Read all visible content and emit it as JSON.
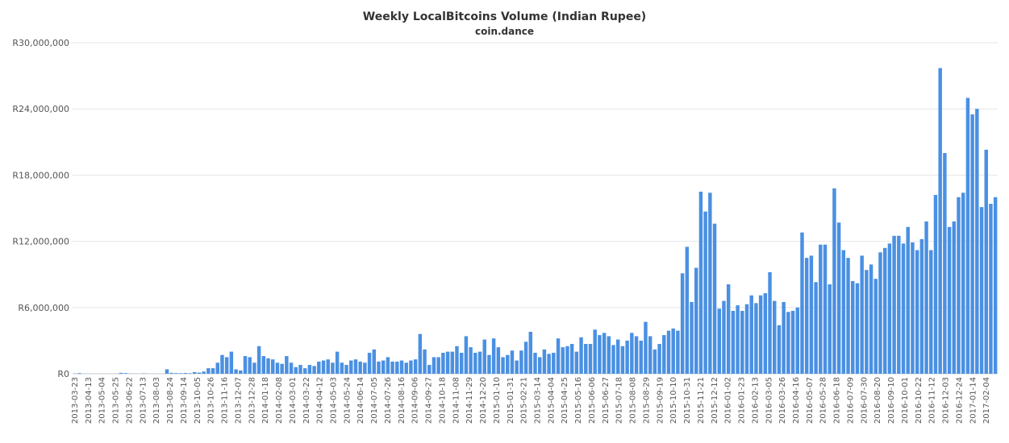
{
  "chart_data": {
    "type": "bar",
    "title": "Weekly LocalBitcoins Volume (Indian Rupee)",
    "subtitle": "coin.dance",
    "xlabel": "",
    "ylabel": "",
    "ylim": [
      0,
      30000000
    ],
    "yticks": [
      0,
      6000000,
      12000000,
      18000000,
      24000000,
      30000000
    ],
    "ytick_labels": [
      "R0",
      "R6,000,000",
      "R12,000,000",
      "R18,000,000",
      "R24,000,000",
      "R30,000,000"
    ],
    "grid": true,
    "bar_color": "#4a90e2",
    "x_tick_labels": [
      "2013-03-23",
      "2013-04-13",
      "2013-05-04",
      "2013-05-25",
      "2013-06-22",
      "2013-07-13",
      "2013-08-03",
      "2013-08-24",
      "2013-09-14",
      "2013-10-05",
      "2013-10-26",
      "2013-11-16",
      "2013-12-07",
      "2013-12-28",
      "2014-01-18",
      "2014-02-08",
      "2014-03-01",
      "2014-03-22",
      "2014-04-12",
      "2014-05-03",
      "2014-05-24",
      "2014-06-14",
      "2014-07-05",
      "2014-07-26",
      "2014-08-16",
      "2014-09-06",
      "2014-09-27",
      "2014-10-18",
      "2014-11-08",
      "2014-11-29",
      "2014-12-20",
      "2015-01-10",
      "2015-01-31",
      "2015-02-21",
      "2015-03-14",
      "2015-04-04",
      "2015-04-25",
      "2015-05-16",
      "2015-06-06",
      "2015-06-27",
      "2015-07-18",
      "2015-08-08",
      "2015-08-29",
      "2015-09-19",
      "2015-10-10",
      "2015-10-31",
      "2015-11-21",
      "2015-12-12",
      "2016-01-02",
      "2016-01-23",
      "2016-02-13",
      "2016-03-05",
      "2016-03-26",
      "2016-04-16",
      "2016-05-07",
      "2016-05-28",
      "2016-06-18",
      "2016-07-09",
      "2016-07-30",
      "2016-08-20",
      "2016-09-10",
      "2016-10-01",
      "2016-10-22",
      "2016-11-12",
      "2016-12-03",
      "2016-12-24",
      "2017-01-14",
      "2017-02-04"
    ],
    "values": [
      20000,
      60000,
      10000,
      10000,
      5000,
      5000,
      5000,
      5000,
      5000,
      10000,
      80000,
      60000,
      20000,
      10000,
      5000,
      30000,
      10000,
      10000,
      5000,
      5000,
      400000,
      80000,
      60000,
      50000,
      70000,
      50000,
      150000,
      100000,
      200000,
      500000,
      500000,
      1000000,
      1700000,
      1500000,
      2000000,
      400000,
      300000,
      1600000,
      1500000,
      1000000,
      2500000,
      1600000,
      1400000,
      1300000,
      1000000,
      900000,
      1600000,
      1000000,
      600000,
      800000,
      500000,
      800000,
      700000,
      1100000,
      1200000,
      1300000,
      1000000,
      2000000,
      1000000,
      800000,
      1200000,
      1300000,
      1100000,
      1000000,
      1900000,
      2200000,
      1100000,
      1200000,
      1500000,
      1100000,
      1100000,
      1200000,
      1000000,
      1200000,
      1300000,
      3600000,
      2200000,
      800000,
      1500000,
      1500000,
      1900000,
      2000000,
      2000000,
      2500000,
      1900000,
      3400000,
      2400000,
      1900000,
      2000000,
      3100000,
      1700000,
      3200000,
      2400000,
      1500000,
      1700000,
      2100000,
      1200000,
      2100000,
      2900000,
      3800000,
      1900000,
      1500000,
      2200000,
      1800000,
      1900000,
      3200000,
      2400000,
      2500000,
      2700000,
      2000000,
      3300000,
      2700000,
      2700000,
      4000000,
      3500000,
      3700000,
      3400000,
      2600000,
      3100000,
      2500000,
      3000000,
      3700000,
      3400000,
      3000000,
      4700000,
      3400000,
      2200000,
      2700000,
      3500000,
      3900000,
      4100000,
      3900000,
      9100000,
      11500000,
      6500000,
      9600000,
      16500000,
      14700000,
      16400000,
      13600000,
      5900000,
      6600000,
      8100000,
      5700000,
      6200000,
      5700000,
      6300000,
      7100000,
      6400000,
      7100000,
      7300000,
      9200000,
      6600000,
      4400000,
      6500000,
      5600000,
      5700000,
      6000000,
      12800000,
      10500000,
      10700000,
      8300000,
      11700000,
      11700000,
      8100000,
      16800000,
      13700000,
      11200000,
      10500000,
      8400000,
      8200000,
      10700000,
      9400000,
      9900000,
      8600000,
      11000000,
      11400000,
      11800000,
      12500000,
      12500000,
      11800000,
      13300000,
      11900000,
      11200000,
      12200000,
      13800000,
      11200000,
      16200000,
      27700000,
      20000000,
      13300000,
      13800000,
      16000000,
      16400000,
      25000000,
      23500000,
      24000000,
      15100000,
      20300000,
      15400000,
      16000000
    ]
  }
}
